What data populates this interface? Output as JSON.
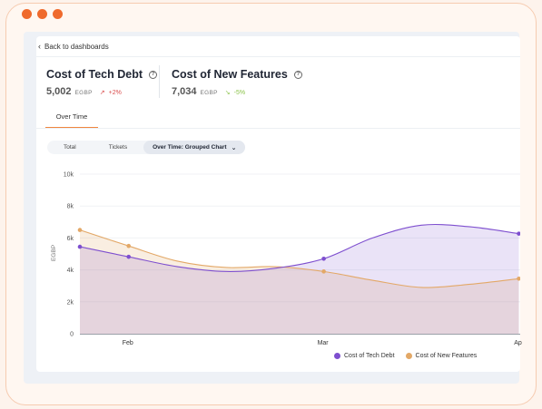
{
  "back_link": "Back to dashboards",
  "metrics": [
    {
      "title": "Cost of Tech Debt",
      "value": "5,002",
      "unit": "EGBP",
      "trend": "+2%",
      "trend_dir": "up"
    },
    {
      "title": "Cost of New Features",
      "value": "7,034",
      "unit": "EGBP",
      "trend": "-5%",
      "trend_dir": "down"
    }
  ],
  "tab": "Over Time",
  "segments": [
    "Total",
    "Tickets",
    "Over Time: Grouped Chart"
  ],
  "colors": {
    "tech_debt": "#7e4fcf",
    "new_features": "#e3a867",
    "accent": "#ef6a2d"
  },
  "chart_data": {
    "type": "area",
    "ylabel": "EGBP",
    "ylim": [
      0,
      10000
    ],
    "yticks": [
      0,
      2000,
      4000,
      6000,
      8000,
      10000
    ],
    "ytick_labels": [
      "0",
      "2k",
      "4k",
      "6k",
      "8k",
      "10k"
    ],
    "xtick_labels": [
      "Feb",
      "Mar",
      "Ap"
    ],
    "xtick_positions": [
      1,
      5,
      9
    ],
    "legend_position": "bottom-right",
    "series": [
      {
        "name": "Cost of Tech Debt",
        "x": [
          0,
          1,
          5,
          9
        ],
        "values": [
          5450,
          4820,
          4700,
          6270
        ],
        "curve_x": [
          0,
          1,
          2,
          3,
          4,
          5,
          6,
          7,
          8,
          9
        ],
        "curve": [
          5450,
          4820,
          4200,
          3900,
          4100,
          4700,
          6000,
          6800,
          6700,
          6270
        ]
      },
      {
        "name": "Cost of New Features",
        "x": [
          0,
          1,
          5,
          9
        ],
        "values": [
          6500,
          5500,
          3900,
          3450
        ],
        "curve_x": [
          0,
          1,
          2,
          3,
          4,
          5,
          6,
          7,
          8,
          9
        ],
        "curve": [
          6500,
          5500,
          4550,
          4150,
          4200,
          3900,
          3350,
          2900,
          3100,
          3450
        ]
      }
    ]
  }
}
